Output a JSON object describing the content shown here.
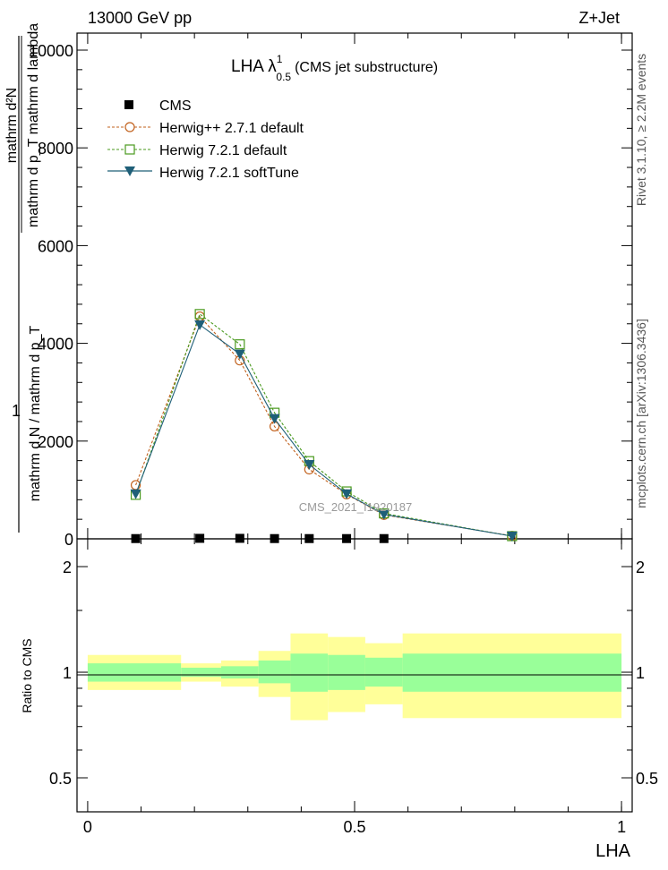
{
  "header": {
    "left": "13000 GeV pp",
    "right": "Z+Jet"
  },
  "plot_title": {
    "main": "LHA λ",
    "sup": "1",
    "sub": "0.5",
    "suffix": "(CMS jet substructure)"
  },
  "watermark": "CMS_2021_I1920187",
  "side_labels": {
    "rivet": "Rivet 3.1.10, ≥ 2.2M events",
    "mcplots": "mcplots.cern.ch [arXiv:1306.3436]"
  },
  "ylabel_main": {
    "one": "1",
    "num": "mathrm d²N",
    "den1": "mathrm d p_T mathrm d lambda",
    "den2": "mathrm d N / mathrm d p_T"
  },
  "ylabel_ratio": "Ratio to CMS",
  "xlabel": "LHA",
  "colors": {
    "cms": "#000000",
    "herwigpp": "#c2621e",
    "herwig721": "#4a9a1e",
    "softtune": "#1f5f78",
    "band_outer": "#ffff99",
    "band_inner": "#99ff99"
  },
  "chart_data": [
    {
      "type": "line",
      "panel": "main",
      "xlim": [
        -0.02,
        1.02
      ],
      "ylim": [
        0,
        10000
      ],
      "yticks": [
        0,
        2000,
        4000,
        6000,
        8000,
        10000
      ],
      "ytick_labels": [
        "0",
        "2000",
        "4000",
        "6000",
        "8000",
        "10000"
      ],
      "legend_placement": "top-left",
      "series": [
        {
          "name": "CMS",
          "key": "cms",
          "marker": "square-filled",
          "x": [
            0.09,
            0.21,
            0.285,
            0.35,
            0.415,
            0.485,
            0.555
          ],
          "y": [
            5,
            10,
            10,
            5,
            5,
            5,
            5
          ]
        },
        {
          "name": "Herwig++ 2.7.1 default",
          "key": "herwigpp",
          "marker": "circle-open",
          "dash": true,
          "x": [
            0.09,
            0.21,
            0.285,
            0.35,
            0.415,
            0.485,
            0.555,
            0.795
          ],
          "y": [
            1100,
            4550,
            3650,
            2300,
            1420,
            910,
            490,
            60
          ]
        },
        {
          "name": "Herwig 7.2.1 default",
          "key": "herwig721",
          "marker": "square-open",
          "dash": true,
          "x": [
            0.09,
            0.21,
            0.285,
            0.35,
            0.415,
            0.485,
            0.555,
            0.795
          ],
          "y": [
            900,
            4600,
            3980,
            2580,
            1590,
            970,
            520,
            55
          ]
        },
        {
          "name": "Herwig 7.2.1 softTune",
          "key": "softtune",
          "marker": "triangle-down",
          "dash": false,
          "x": [
            0.09,
            0.21,
            0.285,
            0.35,
            0.415,
            0.485,
            0.555,
            0.795
          ],
          "y": [
            920,
            4380,
            3780,
            2460,
            1520,
            920,
            500,
            55
          ]
        }
      ]
    },
    {
      "type": "area",
      "panel": "ratio",
      "xlim": [
        -0.02,
        1.02
      ],
      "ylim": [
        0.4,
        2.4
      ],
      "yticks": [
        0.5,
        1,
        2
      ],
      "ytick_labels": [
        "0.5",
        "1",
        "2"
      ],
      "xticks": [
        0,
        0.5,
        1
      ],
      "xtick_labels": [
        "0",
        "0.5",
        "1"
      ],
      "reference_line": 1,
      "bins": [
        {
          "x0": 0.0,
          "x1": 0.175,
          "inner": [
            0.94,
            1.06
          ],
          "outer": [
            0.89,
            1.12
          ]
        },
        {
          "x0": 0.175,
          "x1": 0.25,
          "inner": [
            0.97,
            1.03
          ],
          "outer": [
            0.94,
            1.06
          ]
        },
        {
          "x0": 0.25,
          "x1": 0.32,
          "inner": [
            0.96,
            1.04
          ],
          "outer": [
            0.91,
            1.08
          ]
        },
        {
          "x0": 0.32,
          "x1": 0.38,
          "inner": [
            0.93,
            1.08
          ],
          "outer": [
            0.85,
            1.15
          ]
        },
        {
          "x0": 0.38,
          "x1": 0.45,
          "inner": [
            0.88,
            1.13
          ],
          "outer": [
            0.73,
            1.29
          ]
        },
        {
          "x0": 0.45,
          "x1": 0.52,
          "inner": [
            0.89,
            1.12
          ],
          "outer": [
            0.77,
            1.26
          ]
        },
        {
          "x0": 0.52,
          "x1": 0.59,
          "inner": [
            0.91,
            1.1
          ],
          "outer": [
            0.81,
            1.21
          ]
        },
        {
          "x0": 0.59,
          "x1": 1.0,
          "inner": [
            0.88,
            1.13
          ],
          "outer": [
            0.74,
            1.29
          ]
        }
      ]
    }
  ]
}
